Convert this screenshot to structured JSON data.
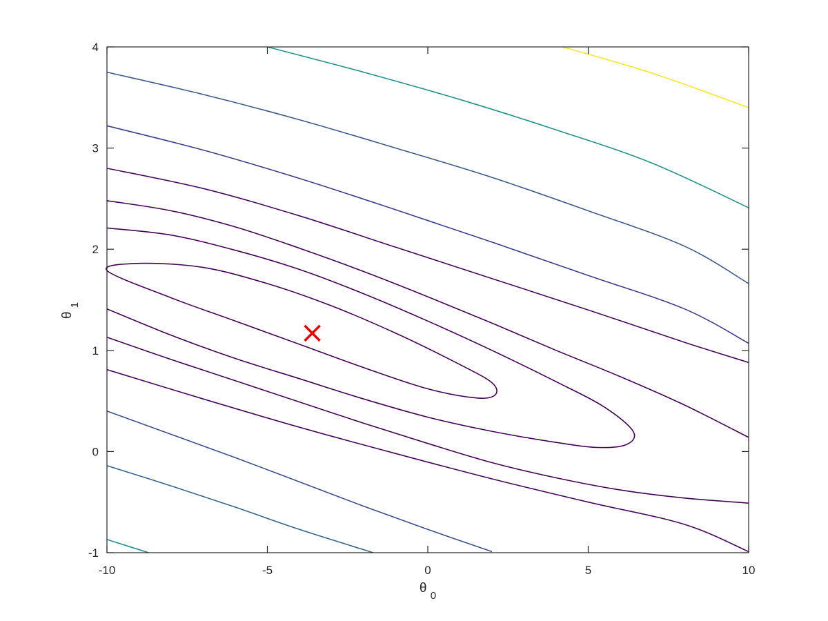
{
  "chart_data": {
    "type": "contour",
    "title": "",
    "xlabel": "θ",
    "xlabel_sub": "0",
    "ylabel": "θ",
    "ylabel_sub": "1",
    "xlim": [
      -10,
      10
    ],
    "ylim": [
      -1,
      4
    ],
    "x_ticks": [
      -10,
      -5,
      0,
      5,
      10
    ],
    "y_ticks": [
      -1,
      0,
      1,
      2,
      3,
      4
    ],
    "grid": false,
    "box": true,
    "contours": [
      {
        "level_index": 0,
        "color": "#440154",
        "shape": "closed",
        "points": [
          [
            -10,
            1.79
          ],
          [
            -9.0,
            1.86
          ],
          [
            -7.0,
            1.82
          ],
          [
            -5.0,
            1.66
          ],
          [
            -3.0,
            1.44
          ],
          [
            -1.0,
            1.17
          ],
          [
            1.0,
            0.86
          ],
          [
            2.0,
            0.68
          ],
          [
            2.1,
            0.56
          ],
          [
            1.5,
            0.53
          ],
          [
            0.0,
            0.62
          ],
          [
            -2.0,
            0.83
          ],
          [
            -4.0,
            1.06
          ],
          [
            -6.0,
            1.29
          ],
          [
            -8.0,
            1.52
          ],
          [
            -10,
            1.79
          ]
        ]
      },
      {
        "level_index": 1,
        "color": "#440154",
        "shape": "open",
        "points": [
          [
            -10,
            2.21
          ],
          [
            -8.0,
            2.14
          ],
          [
            -6.0,
            1.99
          ],
          [
            -4.0,
            1.8
          ],
          [
            -2.0,
            1.56
          ],
          [
            0.0,
            1.29
          ],
          [
            2.0,
            1.0
          ],
          [
            4.0,
            0.69
          ],
          [
            5.5,
            0.44
          ],
          [
            6.4,
            0.2
          ],
          [
            6.2,
            0.07
          ],
          [
            5.3,
            0.04
          ],
          [
            4.0,
            0.09
          ],
          [
            2.0,
            0.2
          ],
          [
            0.0,
            0.34
          ],
          [
            -2.0,
            0.52
          ],
          [
            -4.0,
            0.72
          ],
          [
            -6.0,
            0.92
          ],
          [
            -8.0,
            1.15
          ],
          [
            -10,
            1.41
          ]
        ]
      },
      {
        "level_index": 2,
        "color": "#440154",
        "shape": "open",
        "points": [
          [
            -10,
            2.48
          ],
          [
            -8.0,
            2.38
          ],
          [
            -6.0,
            2.22
          ],
          [
            -4.0,
            2.01
          ],
          [
            -2.0,
            1.78
          ],
          [
            0.0,
            1.53
          ],
          [
            2.0,
            1.27
          ],
          [
            4.0,
            1.0
          ],
          [
            6.0,
            0.74
          ],
          [
            8.0,
            0.46
          ],
          [
            10,
            0.14
          ]
        ]
      },
      {
        "level_index": 3,
        "color": "#440154",
        "shape": "open",
        "points": [
          [
            -10,
            1.13
          ],
          [
            -8.0,
            0.91
          ],
          [
            -6.0,
            0.7
          ],
          [
            -4.0,
            0.49
          ],
          [
            -2.0,
            0.28
          ],
          [
            0.0,
            0.08
          ],
          [
            2.0,
            -0.11
          ],
          [
            4.0,
            -0.26
          ],
          [
            6.0,
            -0.38
          ],
          [
            8.0,
            -0.46
          ],
          [
            10,
            -0.51
          ]
        ]
      },
      {
        "level_index": 4,
        "color": "#46085c",
        "shape": "open",
        "points": [
          [
            -10,
            2.8
          ],
          [
            -7.0,
            2.6
          ],
          [
            -4.0,
            2.33
          ],
          [
            -1.0,
            2.02
          ],
          [
            2.0,
            1.71
          ],
          [
            5.0,
            1.4
          ],
          [
            8.0,
            1.08
          ],
          [
            10,
            0.88
          ]
        ]
      },
      {
        "level_index": 5,
        "color": "#46085c",
        "shape": "open",
        "points": [
          [
            -10,
            0.81
          ],
          [
            -7.0,
            0.52
          ],
          [
            -4.0,
            0.24
          ],
          [
            -1.0,
            -0.02
          ],
          [
            2.0,
            -0.27
          ],
          [
            5.0,
            -0.5
          ],
          [
            8.0,
            -0.72
          ],
          [
            10,
            -0.99
          ]
        ]
      },
      {
        "level_index": 6,
        "color": "#3b3f8a",
        "shape": "open",
        "points": [
          [
            -10,
            3.22
          ],
          [
            -7.0,
            2.98
          ],
          [
            -4.0,
            2.7
          ],
          [
            -1.0,
            2.39
          ],
          [
            2.0,
            2.07
          ],
          [
            5.0,
            1.74
          ],
          [
            8.0,
            1.41
          ],
          [
            10,
            1.07
          ]
        ]
      },
      {
        "level_index": 7,
        "color": "#3b4f8a",
        "shape": "open",
        "points": [
          [
            -10,
            0.4
          ],
          [
            -8.0,
            0.17
          ],
          [
            -6.0,
            -0.06
          ],
          [
            -4.0,
            -0.3
          ],
          [
            -2.0,
            -0.54
          ],
          [
            0.0,
            -0.77
          ],
          [
            2.0,
            -0.99
          ]
        ]
      },
      {
        "level_index": 8,
        "color": "#3e5a8c",
        "shape": "open",
        "points": [
          [
            -10,
            3.75
          ],
          [
            -7.0,
            3.53
          ],
          [
            -4.0,
            3.28
          ],
          [
            -1.0,
            3.0
          ],
          [
            2.0,
            2.71
          ],
          [
            5.0,
            2.38
          ],
          [
            8.0,
            2.03
          ],
          [
            10,
            1.66
          ]
        ]
      },
      {
        "level_index": 9,
        "color": "#35658d",
        "shape": "open",
        "points": [
          [
            -10,
            -0.14
          ],
          [
            -8.0,
            -0.34
          ],
          [
            -6.0,
            -0.55
          ],
          [
            -4.0,
            -0.77
          ],
          [
            -1.7,
            -1.0
          ]
        ]
      },
      {
        "level_index": 10,
        "color": "#21918c",
        "shape": "open",
        "points": [
          [
            -5.0,
            4.0
          ],
          [
            -2.0,
            3.75
          ],
          [
            1.0,
            3.48
          ],
          [
            4.0,
            3.18
          ],
          [
            7.0,
            2.85
          ],
          [
            10,
            2.41
          ]
        ]
      },
      {
        "level_index": 11,
        "color": "#20908c",
        "shape": "open",
        "points": [
          [
            -10,
            -0.87
          ],
          [
            -9.2,
            -0.95
          ],
          [
            -8.7,
            -1.0
          ]
        ]
      },
      {
        "level_index": 12,
        "color": "#fde725",
        "shape": "open",
        "points": [
          [
            4.2,
            4.0
          ],
          [
            7.0,
            3.74
          ],
          [
            10,
            3.4
          ]
        ]
      }
    ],
    "markers": [
      {
        "name": "minimum",
        "symbol": "x",
        "color": "#e60000",
        "x": -3.6,
        "y": 1.17
      }
    ]
  }
}
